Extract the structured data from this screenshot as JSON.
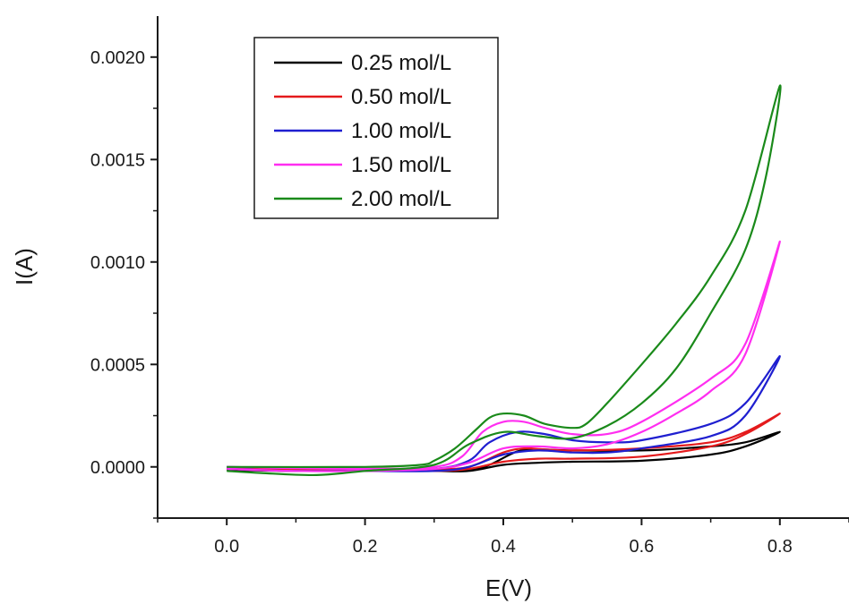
{
  "chart_data": {
    "type": "line",
    "title": "",
    "xlabel": "E(V)",
    "ylabel": "I(A)",
    "xlim": [
      -0.1,
      0.9
    ],
    "ylim": [
      -0.00025,
      0.0022
    ],
    "x_ticks": [
      0.0,
      0.2,
      0.4,
      0.6,
      0.8
    ],
    "x_tick_labels": [
      "0.0",
      "0.2",
      "0.4",
      "0.6",
      "0.8"
    ],
    "y_ticks": [
      0.0,
      0.0005,
      0.001,
      0.0015,
      0.002
    ],
    "y_tick_labels": [
      "0.0000",
      "0.0005",
      "0.0010",
      "0.0015",
      "0.0020"
    ],
    "grid": false,
    "legend_position": "top-left",
    "series": [
      {
        "name": "0.25 mol/L",
        "color": "#000000",
        "forward": {
          "x": [
            0.0,
            0.2,
            0.3,
            0.35,
            0.38,
            0.42,
            0.45,
            0.5,
            0.6,
            0.7,
            0.75,
            0.8
          ],
          "y": [
            -1e-05,
            -1e-05,
            -1e-05,
            -1.5e-05,
            1e-05,
            7.5e-05,
            8.5e-05,
            8e-05,
            8e-05,
            0.0001,
            0.00012,
            0.00017
          ]
        },
        "reverse": {
          "x": [
            0.8,
            0.75,
            0.7,
            0.6,
            0.5,
            0.45,
            0.4,
            0.35,
            0.3,
            0.2,
            0.1,
            0.0
          ],
          "y": [
            0.00017,
            0.0001,
            6e-05,
            3e-05,
            2.5e-05,
            2e-05,
            1e-05,
            -2e-05,
            -2e-05,
            -2e-05,
            -2e-05,
            -1.5e-05
          ]
        }
      },
      {
        "name": "0.50 mol/L",
        "color": "#e41a1c",
        "forward": {
          "x": [
            0.0,
            0.2,
            0.3,
            0.35,
            0.4,
            0.43,
            0.46,
            0.5,
            0.6,
            0.7,
            0.75,
            0.8
          ],
          "y": [
            -1e-05,
            -1e-05,
            -1e-05,
            0.0,
            7e-05,
            9e-05,
            8.5e-05,
            8e-05,
            9e-05,
            0.00012,
            0.00017,
            0.00026
          ]
        },
        "reverse": {
          "x": [
            0.8,
            0.75,
            0.7,
            0.6,
            0.5,
            0.45,
            0.4,
            0.35,
            0.3,
            0.2,
            0.1,
            0.0
          ],
          "y": [
            0.00026,
            0.00016,
            0.0001,
            5e-05,
            4e-05,
            4e-05,
            2.5e-05,
            -1e-05,
            -2e-05,
            -2e-05,
            -2e-05,
            -1e-05
          ]
        }
      },
      {
        "name": "1.00 mol/L",
        "color": "#1f1fd0",
        "forward": {
          "x": [
            0.0,
            0.2,
            0.3,
            0.35,
            0.38,
            0.42,
            0.46,
            0.5,
            0.55,
            0.6,
            0.7,
            0.75,
            0.8
          ],
          "y": [
            0.0,
            -1e-05,
            -1e-05,
            3e-05,
            0.00012,
            0.00017,
            0.00016,
            0.00013,
            0.00012,
            0.00013,
            0.00021,
            0.00031,
            0.00054
          ]
        },
        "reverse": {
          "x": [
            0.8,
            0.75,
            0.7,
            0.6,
            0.55,
            0.5,
            0.45,
            0.4,
            0.35,
            0.3,
            0.2,
            0.1,
            0.0
          ],
          "y": [
            0.00054,
            0.00025,
            0.00015,
            9e-05,
            7e-05,
            7e-05,
            8e-05,
            6e-05,
            0.0,
            -2e-05,
            -2e-05,
            -2e-05,
            -1e-05
          ]
        }
      },
      {
        "name": "1.50 mol/L",
        "color": "#ff2ef0",
        "forward": {
          "x": [
            0.0,
            0.2,
            0.3,
            0.34,
            0.37,
            0.4,
            0.43,
            0.46,
            0.5,
            0.55,
            0.6,
            0.7,
            0.75,
            0.8
          ],
          "y": [
            0.0,
            -1e-05,
            0.0,
            5e-05,
            0.00017,
            0.00022,
            0.00022,
            0.00019,
            0.00016,
            0.00016,
            0.00022,
            0.00043,
            0.0006,
            0.0011
          ]
        },
        "reverse": {
          "x": [
            0.8,
            0.75,
            0.7,
            0.65,
            0.6,
            0.55,
            0.5,
            0.45,
            0.4,
            0.35,
            0.3,
            0.2,
            0.1,
            0.0
          ],
          "y": [
            0.0011,
            0.00055,
            0.00037,
            0.00026,
            0.00017,
            0.00011,
            9e-05,
            0.0001,
            9e-05,
            2e-05,
            -1e-05,
            -2e-05,
            -2e-05,
            -1e-05
          ]
        }
      },
      {
        "name": "2.00 mol/L",
        "color": "#1a8a1a",
        "forward": {
          "x": [
            0.0,
            0.2,
            0.28,
            0.3,
            0.33,
            0.36,
            0.38,
            0.4,
            0.43,
            0.46,
            0.5,
            0.52,
            0.55,
            0.6,
            0.65,
            0.7,
            0.75,
            0.8
          ],
          "y": [
            0.0,
            0.0,
            1e-05,
            3e-05,
            9e-05,
            0.00018,
            0.00024,
            0.00026,
            0.00025,
            0.00021,
            0.00019,
            0.00021,
            0.00031,
            0.0005,
            0.0007,
            0.00093,
            0.00125,
            0.00186
          ]
        },
        "reverse": {
          "x": [
            0.8,
            0.78,
            0.75,
            0.7,
            0.65,
            0.6,
            0.55,
            0.5,
            0.45,
            0.4,
            0.35,
            0.3,
            0.2,
            0.13,
            0.05,
            0.0
          ],
          "y": [
            0.00186,
            0.00142,
            0.00106,
            0.00075,
            0.00048,
            0.00031,
            0.0002,
            0.00014,
            0.00015,
            0.00017,
            0.00011,
            1e-05,
            -2e-05,
            -4e-05,
            -3e-05,
            -2e-05
          ]
        }
      }
    ]
  }
}
